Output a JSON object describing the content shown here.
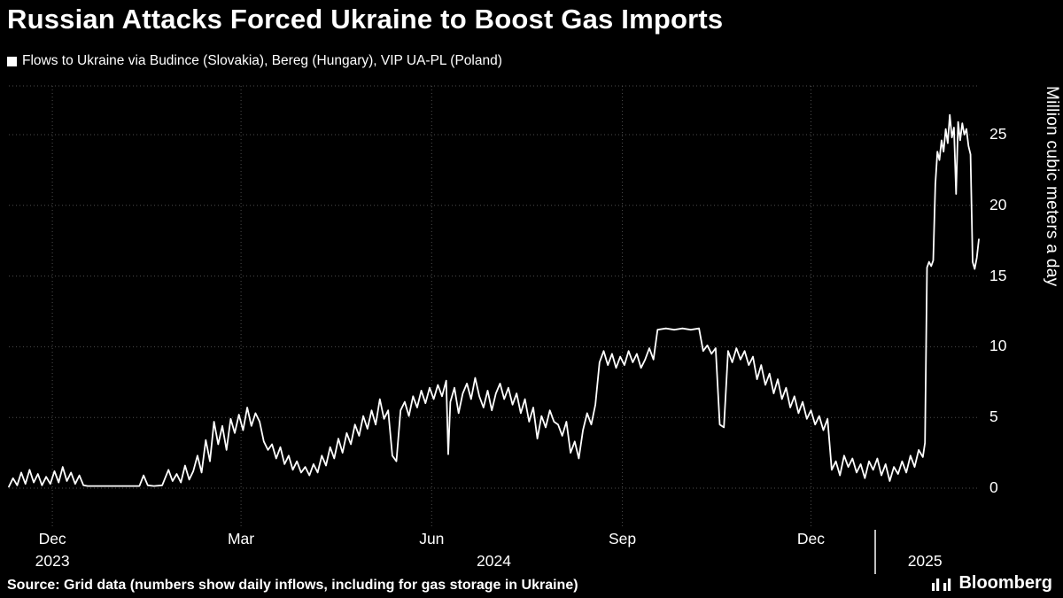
{
  "header": {
    "title": "Russian Attacks Forced Ukraine to Boost Gas Imports",
    "legend": "Flows to Ukraine via Budince (Slovakia), Bereg (Hungary), VIP UA-PL (Poland)"
  },
  "footer": {
    "source": "Source: Grid data (numbers show daily inflows, including for gas storage in Ukraine)",
    "brand": "Bloomberg"
  },
  "colors": {
    "background": "#000000",
    "text": "#ffffff",
    "line": "#ffffff",
    "grid": "#4e4e4e"
  },
  "chart_data": {
    "type": "line",
    "title": "Russian Attacks Forced Ukraine to Boost Gas Imports",
    "ylabel": "Million cubic meters a day",
    "ylim": [
      0,
      28
    ],
    "yticks": [
      0,
      5,
      10,
      15,
      20,
      25
    ],
    "grid": true,
    "legend_position": "top-left",
    "x_range": [
      "2023-11-10",
      "2025-02-20"
    ],
    "x_axis": {
      "month_ticks": [
        {
          "label": "Dec",
          "date": "2023-12-01"
        },
        {
          "label": "Mar",
          "date": "2024-03-01"
        },
        {
          "label": "Jun",
          "date": "2024-06-01"
        },
        {
          "label": "Sep",
          "date": "2024-09-01"
        },
        {
          "label": "Dec",
          "date": "2024-12-01"
        }
      ],
      "year_labels": [
        {
          "label": "2023",
          "anchor": "2023-12-01"
        },
        {
          "label": "2024",
          "anchor": "2024-07-01"
        },
        {
          "label": "2025",
          "anchor": "2025-01-25"
        }
      ],
      "year_separators": [
        "2025-01-01"
      ]
    },
    "series": [
      {
        "name": "Flows to Ukraine via Budince (Slovakia), Bereg (Hungary), VIP UA-PL (Poland)",
        "color": "#ffffff",
        "points": [
          [
            "2023-11-10",
            0.1
          ],
          [
            "2023-11-12",
            0.7
          ],
          [
            "2023-11-14",
            0.2
          ],
          [
            "2023-11-16",
            1.1
          ],
          [
            "2023-11-18",
            0.3
          ],
          [
            "2023-11-20",
            1.3
          ],
          [
            "2023-11-22",
            0.4
          ],
          [
            "2023-11-24",
            1.0
          ],
          [
            "2023-11-26",
            0.2
          ],
          [
            "2023-11-28",
            0.8
          ],
          [
            "2023-11-30",
            0.3
          ],
          [
            "2023-12-02",
            1.2
          ],
          [
            "2023-12-04",
            0.4
          ],
          [
            "2023-12-06",
            1.5
          ],
          [
            "2023-12-08",
            0.5
          ],
          [
            "2023-12-10",
            1.1
          ],
          [
            "2023-12-12",
            0.3
          ],
          [
            "2023-12-14",
            0.9
          ],
          [
            "2023-12-16",
            0.2
          ],
          [
            "2023-12-18",
            0.15
          ],
          [
            "2023-12-22",
            0.15
          ],
          [
            "2023-12-26",
            0.15
          ],
          [
            "2023-12-30",
            0.15
          ],
          [
            "2024-01-03",
            0.15
          ],
          [
            "2024-01-08",
            0.15
          ],
          [
            "2024-01-12",
            0.15
          ],
          [
            "2024-01-14",
            0.9
          ],
          [
            "2024-01-16",
            0.2
          ],
          [
            "2024-01-19",
            0.15
          ],
          [
            "2024-01-23",
            0.2
          ],
          [
            "2024-01-26",
            1.3
          ],
          [
            "2024-01-28",
            0.5
          ],
          [
            "2024-01-30",
            1.0
          ],
          [
            "2024-02-01",
            0.4
          ],
          [
            "2024-02-03",
            1.6
          ],
          [
            "2024-02-05",
            0.6
          ],
          [
            "2024-02-07",
            1.2
          ],
          [
            "2024-02-09",
            2.3
          ],
          [
            "2024-02-11",
            1.1
          ],
          [
            "2024-02-13",
            3.4
          ],
          [
            "2024-02-15",
            1.9
          ],
          [
            "2024-02-17",
            4.7
          ],
          [
            "2024-02-19",
            3.1
          ],
          [
            "2024-02-21",
            4.4
          ],
          [
            "2024-02-23",
            2.7
          ],
          [
            "2024-02-25",
            4.9
          ],
          [
            "2024-02-27",
            3.9
          ],
          [
            "2024-02-29",
            5.2
          ],
          [
            "2024-03-02",
            4.1
          ],
          [
            "2024-03-04",
            5.7
          ],
          [
            "2024-03-06",
            4.4
          ],
          [
            "2024-03-08",
            5.3
          ],
          [
            "2024-03-10",
            4.7
          ],
          [
            "2024-03-12",
            3.3
          ],
          [
            "2024-03-14",
            2.7
          ],
          [
            "2024-03-16",
            3.1
          ],
          [
            "2024-03-18",
            2.1
          ],
          [
            "2024-03-20",
            2.9
          ],
          [
            "2024-03-22",
            1.7
          ],
          [
            "2024-03-24",
            2.3
          ],
          [
            "2024-03-26",
            1.3
          ],
          [
            "2024-03-28",
            1.9
          ],
          [
            "2024-03-30",
            1.1
          ],
          [
            "2024-04-01",
            1.5
          ],
          [
            "2024-04-03",
            0.9
          ],
          [
            "2024-04-05",
            1.7
          ],
          [
            "2024-04-07",
            1.1
          ],
          [
            "2024-04-09",
            2.3
          ],
          [
            "2024-04-11",
            1.6
          ],
          [
            "2024-04-13",
            2.9
          ],
          [
            "2024-04-15",
            2.1
          ],
          [
            "2024-04-17",
            3.5
          ],
          [
            "2024-04-19",
            2.5
          ],
          [
            "2024-04-21",
            3.9
          ],
          [
            "2024-04-23",
            3.1
          ],
          [
            "2024-04-25",
            4.5
          ],
          [
            "2024-04-27",
            3.7
          ],
          [
            "2024-04-29",
            5.1
          ],
          [
            "2024-05-01",
            4.2
          ],
          [
            "2024-05-03",
            5.5
          ],
          [
            "2024-05-05",
            4.5
          ],
          [
            "2024-05-07",
            6.3
          ],
          [
            "2024-05-09",
            4.9
          ],
          [
            "2024-05-11",
            5.5
          ],
          [
            "2024-05-13",
            2.3
          ],
          [
            "2024-05-15",
            1.9
          ],
          [
            "2024-05-17",
            5.5
          ],
          [
            "2024-05-19",
            6.1
          ],
          [
            "2024-05-21",
            5.1
          ],
          [
            "2024-05-23",
            6.5
          ],
          [
            "2024-05-25",
            5.7
          ],
          [
            "2024-05-27",
            6.9
          ],
          [
            "2024-05-29",
            6.0
          ],
          [
            "2024-05-31",
            7.1
          ],
          [
            "2024-06-02",
            6.3
          ],
          [
            "2024-06-04",
            7.3
          ],
          [
            "2024-06-06",
            6.5
          ],
          [
            "2024-06-08",
            7.6
          ],
          [
            "2024-06-09",
            2.4
          ],
          [
            "2024-06-10",
            6.1
          ],
          [
            "2024-06-12",
            7.1
          ],
          [
            "2024-06-14",
            5.3
          ],
          [
            "2024-06-16",
            6.7
          ],
          [
            "2024-06-18",
            7.4
          ],
          [
            "2024-06-20",
            6.3
          ],
          [
            "2024-06-22",
            7.8
          ],
          [
            "2024-06-24",
            6.5
          ],
          [
            "2024-06-26",
            5.7
          ],
          [
            "2024-06-28",
            6.9
          ],
          [
            "2024-06-30",
            5.5
          ],
          [
            "2024-07-02",
            6.7
          ],
          [
            "2024-07-04",
            7.4
          ],
          [
            "2024-07-06",
            6.3
          ],
          [
            "2024-07-08",
            7.1
          ],
          [
            "2024-07-10",
            5.9
          ],
          [
            "2024-07-12",
            6.7
          ],
          [
            "2024-07-14",
            5.3
          ],
          [
            "2024-07-16",
            6.3
          ],
          [
            "2024-07-18",
            4.7
          ],
          [
            "2024-07-20",
            5.7
          ],
          [
            "2024-07-22",
            3.5
          ],
          [
            "2024-07-24",
            5.1
          ],
          [
            "2024-07-26",
            4.3
          ],
          [
            "2024-07-28",
            5.5
          ],
          [
            "2024-07-30",
            4.7
          ],
          [
            "2024-08-01",
            4.5
          ],
          [
            "2024-08-03",
            3.7
          ],
          [
            "2024-08-05",
            4.7
          ],
          [
            "2024-08-07",
            2.5
          ],
          [
            "2024-08-09",
            3.3
          ],
          [
            "2024-08-11",
            2.1
          ],
          [
            "2024-08-13",
            4.1
          ],
          [
            "2024-08-15",
            5.3
          ],
          [
            "2024-08-17",
            4.5
          ],
          [
            "2024-08-19",
            5.9
          ],
          [
            "2024-08-21",
            8.9
          ],
          [
            "2024-08-23",
            9.7
          ],
          [
            "2024-08-25",
            8.7
          ],
          [
            "2024-08-27",
            9.5
          ],
          [
            "2024-08-29",
            8.5
          ],
          [
            "2024-08-31",
            9.3
          ],
          [
            "2024-09-02",
            8.7
          ],
          [
            "2024-09-04",
            9.7
          ],
          [
            "2024-09-06",
            8.9
          ],
          [
            "2024-09-08",
            9.5
          ],
          [
            "2024-09-10",
            8.5
          ],
          [
            "2024-09-12",
            9.1
          ],
          [
            "2024-09-14",
            9.9
          ],
          [
            "2024-09-16",
            9.1
          ],
          [
            "2024-09-18",
            11.2
          ],
          [
            "2024-09-22",
            11.3
          ],
          [
            "2024-09-26",
            11.2
          ],
          [
            "2024-09-30",
            11.3
          ],
          [
            "2024-10-04",
            11.2
          ],
          [
            "2024-10-08",
            11.3
          ],
          [
            "2024-10-10",
            9.7
          ],
          [
            "2024-10-12",
            10.1
          ],
          [
            "2024-10-14",
            9.5
          ],
          [
            "2024-10-16",
            9.9
          ],
          [
            "2024-10-18",
            4.5
          ],
          [
            "2024-10-20",
            4.3
          ],
          [
            "2024-10-22",
            9.7
          ],
          [
            "2024-10-24",
            8.9
          ],
          [
            "2024-10-26",
            9.9
          ],
          [
            "2024-10-28",
            9.1
          ],
          [
            "2024-10-30",
            9.7
          ],
          [
            "2024-11-01",
            8.7
          ],
          [
            "2024-11-03",
            9.3
          ],
          [
            "2024-11-05",
            7.7
          ],
          [
            "2024-11-07",
            8.7
          ],
          [
            "2024-11-09",
            7.3
          ],
          [
            "2024-11-11",
            8.1
          ],
          [
            "2024-11-13",
            6.7
          ],
          [
            "2024-11-15",
            7.7
          ],
          [
            "2024-11-17",
            6.3
          ],
          [
            "2024-11-19",
            7.1
          ],
          [
            "2024-11-21",
            5.7
          ],
          [
            "2024-11-23",
            6.5
          ],
          [
            "2024-11-25",
            5.3
          ],
          [
            "2024-11-27",
            6.1
          ],
          [
            "2024-11-29",
            4.9
          ],
          [
            "2024-12-01",
            5.5
          ],
          [
            "2024-12-03",
            4.5
          ],
          [
            "2024-12-05",
            5.1
          ],
          [
            "2024-12-07",
            4.1
          ],
          [
            "2024-12-09",
            4.9
          ],
          [
            "2024-12-11",
            1.3
          ],
          [
            "2024-12-13",
            1.9
          ],
          [
            "2024-12-15",
            0.9
          ],
          [
            "2024-12-17",
            2.3
          ],
          [
            "2024-12-19",
            1.5
          ],
          [
            "2024-12-21",
            2.1
          ],
          [
            "2024-12-23",
            1.1
          ],
          [
            "2024-12-25",
            1.7
          ],
          [
            "2024-12-27",
            0.7
          ],
          [
            "2024-12-29",
            1.9
          ],
          [
            "2024-12-31",
            1.3
          ],
          [
            "2025-01-02",
            2.1
          ],
          [
            "2025-01-04",
            0.9
          ],
          [
            "2025-01-06",
            1.7
          ],
          [
            "2025-01-08",
            0.5
          ],
          [
            "2025-01-10",
            1.5
          ],
          [
            "2025-01-12",
            1.0
          ],
          [
            "2025-01-14",
            1.9
          ],
          [
            "2025-01-16",
            1.1
          ],
          [
            "2025-01-18",
            2.3
          ],
          [
            "2025-01-20",
            1.5
          ],
          [
            "2025-01-22",
            2.7
          ],
          [
            "2025-01-24",
            2.2
          ],
          [
            "2025-01-25",
            3.2
          ],
          [
            "2025-01-26",
            15.6
          ],
          [
            "2025-01-27",
            16.0
          ],
          [
            "2025-01-28",
            15.7
          ],
          [
            "2025-01-29",
            16.1
          ],
          [
            "2025-01-30",
            21.5
          ],
          [
            "2025-01-31",
            23.8
          ],
          [
            "2025-02-01",
            23.2
          ],
          [
            "2025-02-02",
            24.6
          ],
          [
            "2025-02-03",
            23.8
          ],
          [
            "2025-02-04",
            25.4
          ],
          [
            "2025-02-05",
            24.4
          ],
          [
            "2025-02-06",
            26.4
          ],
          [
            "2025-02-07",
            24.8
          ],
          [
            "2025-02-08",
            25.5
          ],
          [
            "2025-02-09",
            20.8
          ],
          [
            "2025-02-10",
            25.9
          ],
          [
            "2025-02-11",
            24.6
          ],
          [
            "2025-02-12",
            25.8
          ],
          [
            "2025-02-13",
            25.0
          ],
          [
            "2025-02-14",
            25.4
          ],
          [
            "2025-02-15",
            24.2
          ],
          [
            "2025-02-16",
            23.6
          ],
          [
            "2025-02-17",
            16.0
          ],
          [
            "2025-02-18",
            15.5
          ],
          [
            "2025-02-19",
            16.3
          ],
          [
            "2025-02-20",
            17.6
          ]
        ]
      }
    ]
  }
}
